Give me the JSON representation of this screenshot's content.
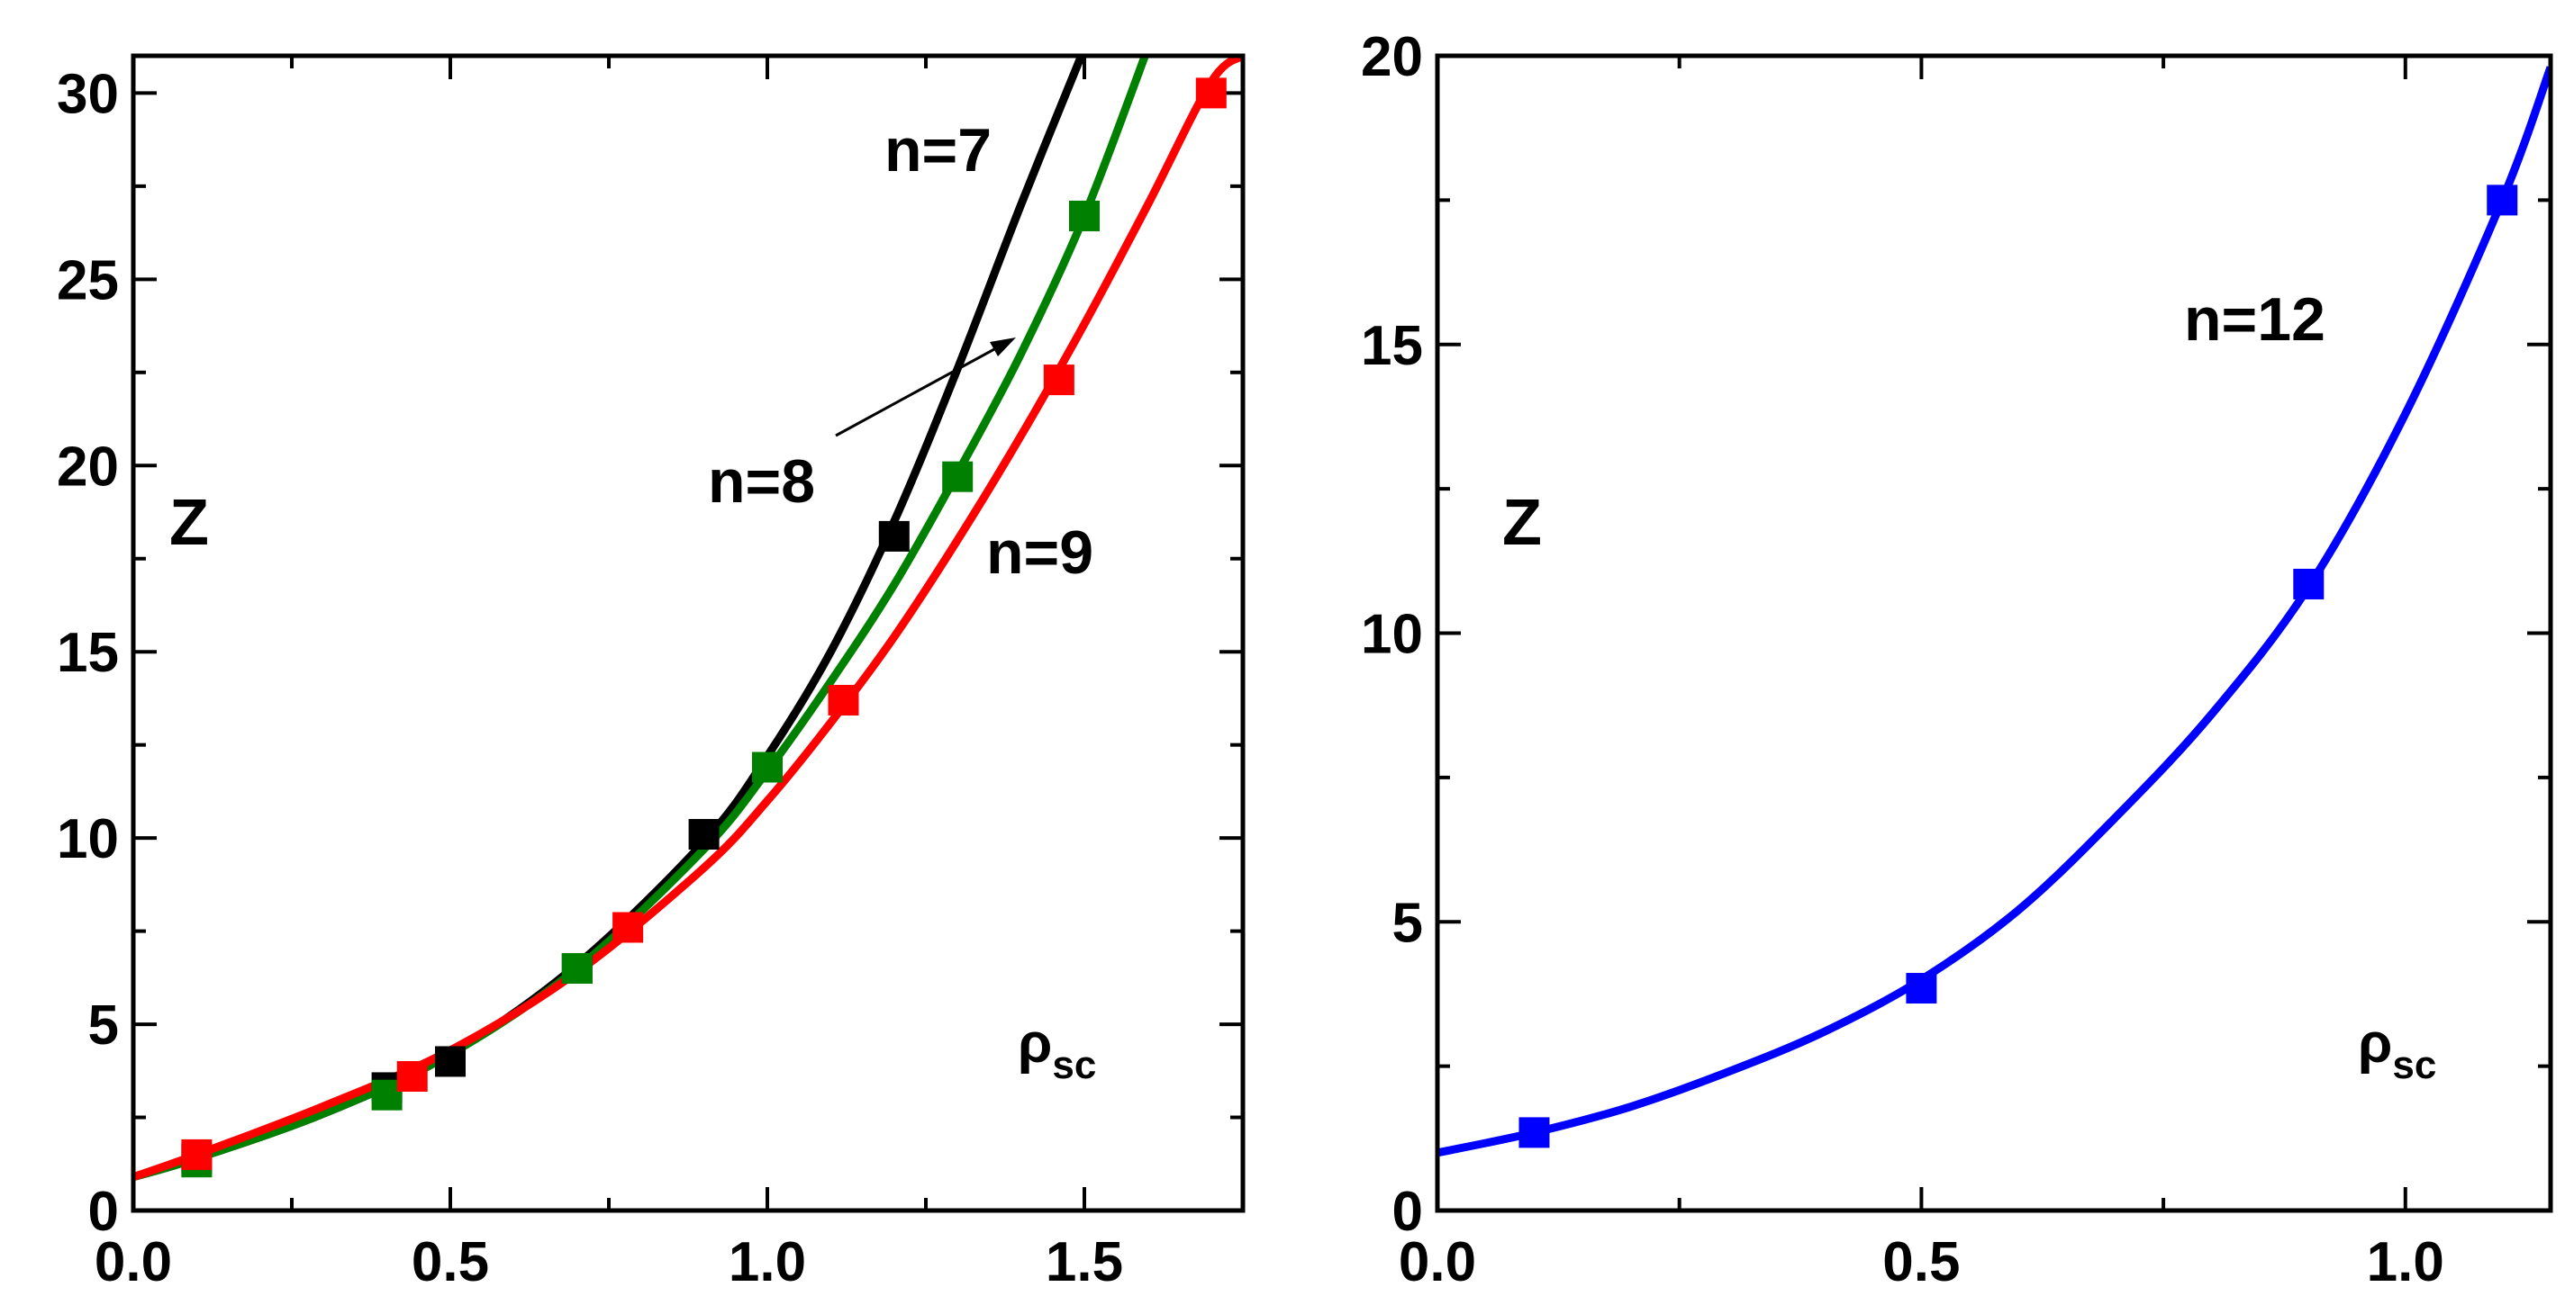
{
  "chart_data": [
    {
      "type": "line",
      "panel": "left",
      "title": "",
      "xlabel": "ρsc",
      "ylabel": "Z",
      "xlim": [
        0,
        1.75
      ],
      "ylim": [
        0,
        31
      ],
      "xticks": [
        "0.0",
        "0.5",
        "1.0",
        "1.5"
      ],
      "yticks": [
        "0",
        "5",
        "10",
        "15",
        "20",
        "25",
        "30"
      ],
      "annotations": [
        {
          "text": "n=7",
          "series": "n=7"
        },
        {
          "text": "n=8",
          "series": "n=8",
          "arrow": true
        },
        {
          "text": "n=9",
          "series": "n=9"
        }
      ],
      "series": [
        {
          "name": "n=7",
          "color": "#000000",
          "curve": {
            "x": [
              0,
              0.1,
              0.3,
              0.5,
              0.7,
              0.9,
              1.0,
              1.1,
              1.2,
              1.3,
              1.4,
              1.5
            ],
            "y": [
              0.9,
              1.4,
              2.6,
              4.2,
              6.6,
              9.9,
              12.2,
              15.0,
              18.5,
              22.6,
              27.0,
              31.2
            ]
          },
          "points": {
            "x": [
              0.1,
              0.4,
              0.5,
              0.7,
              0.9,
              1.2
            ],
            "y": [
              1.4,
              3.3,
              4.0,
              6.5,
              10.1,
              18.1
            ]
          }
        },
        {
          "name": "n=8",
          "color": "#008000",
          "curve": {
            "x": [
              0,
              0.1,
              0.3,
              0.5,
              0.7,
              0.9,
              1.0,
              1.1,
              1.2,
              1.3,
              1.4,
              1.5,
              1.6
            ],
            "y": [
              0.9,
              1.4,
              2.6,
              4.2,
              6.5,
              9.7,
              11.8,
              14.2,
              16.8,
              19.8,
              23.0,
              26.7,
              31.2
            ]
          },
          "points": {
            "x": [
              0.1,
              0.4,
              0.7,
              1.0,
              1.3,
              1.5
            ],
            "y": [
              1.3,
              3.1,
              6.5,
              11.9,
              19.7,
              26.7
            ]
          }
        },
        {
          "name": "n=9",
          "color": "#ff0000",
          "curve": {
            "x": [
              0,
              0.1,
              0.3,
              0.5,
              0.7,
              0.9,
              1.0,
              1.1,
              1.2,
              1.3,
              1.4,
              1.5,
              1.6,
              1.7,
              1.75
            ],
            "y": [
              0.9,
              1.5,
              2.8,
              4.3,
              6.4,
              9.2,
              11.0,
              13.1,
              15.4,
              18.0,
              20.8,
              23.8,
              27.0,
              30.3,
              31.0
            ]
          },
          "points": {
            "x": [
              0.1,
              0.44,
              0.78,
              1.12,
              1.46,
              1.7
            ],
            "y": [
              1.5,
              3.6,
              7.6,
              13.7,
              22.3,
              30.0
            ]
          }
        }
      ]
    },
    {
      "type": "line",
      "panel": "right",
      "title": "",
      "xlabel": "ρsc",
      "ylabel": "Z",
      "xlim": [
        0,
        1.15
      ],
      "ylim": [
        0,
        20
      ],
      "xticks": [
        "0.0",
        "0.5",
        "1.0"
      ],
      "yticks": [
        "0",
        "5",
        "10",
        "15",
        "20"
      ],
      "annotations": [
        {
          "text": "n=12",
          "series": "n=12"
        }
      ],
      "series": [
        {
          "name": "n=12",
          "color": "#0000ff",
          "curve": {
            "x": [
              0,
              0.1,
              0.2,
              0.3,
              0.4,
              0.5,
              0.6,
              0.7,
              0.8,
              0.9,
              1.0,
              1.1,
              1.15
            ],
            "y": [
              1.0,
              1.35,
              1.8,
              2.4,
              3.1,
              4.0,
              5.2,
              6.8,
              8.6,
              10.8,
              13.8,
              17.5,
              19.8
            ]
          },
          "points": {
            "x": [
              0.1,
              0.5,
              0.9,
              1.1
            ],
            "y": [
              1.35,
              3.85,
              10.85,
              17.5
            ]
          }
        }
      ]
    }
  ],
  "labels": {
    "rho": "ρ",
    "sub": "sc"
  }
}
